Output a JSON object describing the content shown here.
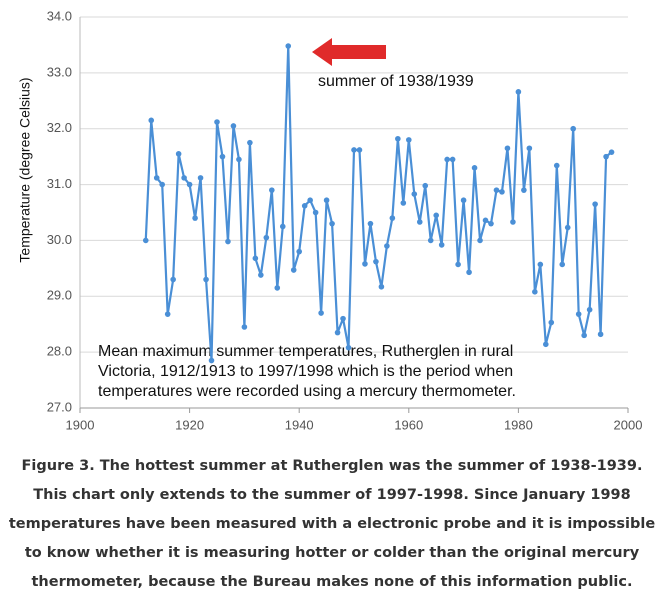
{
  "chart_data": {
    "type": "line",
    "y_label": "Temperature (degree Celsius)",
    "annotations": [
      "summer of 1938/1939",
      "Mean maximum summer temperatures, Rutherglen in rural",
      "Victoria, 1912/1913 to 1997/1998 which is the period when",
      "temperatures were recorded using a mercury thermometer."
    ],
    "x": [
      1912,
      1913,
      1914,
      1915,
      1916,
      1917,
      1918,
      1919,
      1920,
      1921,
      1922,
      1923,
      1924,
      1925,
      1926,
      1927,
      1928,
      1929,
      1930,
      1931,
      1932,
      1933,
      1934,
      1935,
      1936,
      1937,
      1938,
      1939,
      1940,
      1941,
      1942,
      1943,
      1944,
      1945,
      1946,
      1947,
      1948,
      1949,
      1950,
      1951,
      1952,
      1953,
      1954,
      1955,
      1956,
      1957,
      1958,
      1959,
      1960,
      1961,
      1962,
      1963,
      1964,
      1965,
      1966,
      1967,
      1968,
      1969,
      1970,
      1971,
      1972,
      1973,
      1974,
      1975,
      1976,
      1977,
      1978,
      1979,
      1980,
      1981,
      1982,
      1983,
      1984,
      1985,
      1986,
      1987,
      1988,
      1989,
      1990,
      1991,
      1992,
      1993,
      1994,
      1995,
      1996,
      1997
    ],
    "series": [
      {
        "color": "#4a8fd6",
        "values": [
          30.0,
          32.15,
          31.12,
          31.0,
          28.68,
          29.3,
          31.55,
          31.12,
          31.0,
          30.4,
          31.12,
          29.3,
          27.85,
          32.12,
          31.5,
          29.98,
          32.05,
          31.45,
          28.45,
          31.75,
          29.68,
          29.38,
          30.05,
          30.9,
          29.15,
          30.25,
          33.48,
          29.47,
          29.8,
          30.62,
          30.72,
          30.5,
          28.7,
          30.72,
          30.3,
          28.35,
          28.6,
          28.08,
          31.62,
          31.62,
          29.58,
          30.3,
          29.62,
          29.17,
          29.9,
          30.4,
          31.82,
          30.67,
          31.8,
          30.83,
          30.33,
          30.98,
          30.0,
          30.45,
          29.92,
          31.45,
          31.45,
          29.57,
          30.72,
          29.43,
          31.3,
          30.0,
          30.36,
          30.3,
          30.9,
          30.87,
          31.65,
          30.33,
          32.66,
          30.9,
          31.65,
          29.08,
          29.57,
          28.14,
          28.53,
          31.34,
          29.57,
          30.23,
          32.0,
          28.68,
          28.3,
          28.76,
          30.65,
          28.32,
          31.5,
          31.58
        ]
      }
    ],
    "xlim": [
      1900,
      2000
    ],
    "xticks": [
      1900,
      1920,
      1940,
      1960,
      1980,
      2000
    ],
    "ylim": [
      27,
      34
    ],
    "yticks": [
      {
        "value": 27,
        "label": "27.0"
      },
      {
        "value": 28,
        "label": "28.0"
      },
      {
        "value": 29,
        "label": "29.0"
      },
      {
        "value": 30,
        "label": "30.0"
      },
      {
        "value": 31,
        "label": "31.0"
      },
      {
        "value": 32,
        "label": "32.0"
      },
      {
        "value": 33,
        "label": "33.0"
      },
      {
        "value": 34,
        "label": "34.0"
      }
    ],
    "grid": true
  },
  "caption": "Figure 3. The hottest summer at Rutherglen was the summer of 1938-1939. This chart only extends to the summer of 1997-1998. Since January 1998 temperatures have been measured with a electronic probe and it is impossible to know whether it is measuring hotter or colder than the original mercury thermometer, because the Bureau makes none of this information public."
}
